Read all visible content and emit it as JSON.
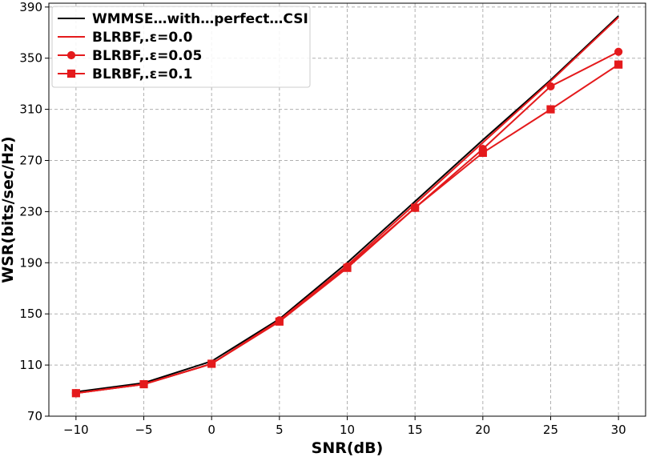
{
  "chart_data": {
    "type": "line",
    "title": "",
    "xlabel": "SNR(dB)",
    "ylabel": "WSR(bits/sec/Hz)",
    "x": [
      -10,
      -5,
      0,
      5,
      10,
      15,
      20,
      25,
      30
    ],
    "xticks": [
      -10,
      -5,
      0,
      5,
      10,
      15,
      20,
      25,
      30
    ],
    "xtick_labels": [
      "−10",
      "−5",
      "0",
      "5",
      "10",
      "15",
      "20",
      "25",
      "30"
    ],
    "yticks": [
      70,
      110,
      150,
      190,
      230,
      270,
      310,
      350,
      390
    ],
    "ytick_labels": [
      "70",
      "110",
      "150",
      "190",
      "230",
      "270",
      "310",
      "350",
      "390"
    ],
    "xlim": [
      -12,
      32
    ],
    "ylim": [
      70,
      393
    ],
    "grid": true,
    "legend_position": "top-left",
    "series": [
      {
        "name": "WMMSE…with…perfect…CSI",
        "color": "#000000",
        "marker": "none",
        "values": [
          89,
          96,
          113,
          146,
          190,
          238,
          286,
          333,
          383
        ]
      },
      {
        "name": "BLRBF,.ε=0.0",
        "color": "#e41a1c",
        "marker": "none",
        "values": [
          88,
          95,
          111,
          145,
          188,
          236,
          284,
          332,
          382
        ]
      },
      {
        "name": "BLRBF,.ε=0.05",
        "color": "#e41a1c",
        "marker": "circle",
        "values": [
          88,
          95,
          111,
          145,
          187,
          233,
          279,
          328,
          355
        ]
      },
      {
        "name": "BLRBF,.ε=0.1",
        "color": "#e41a1c",
        "marker": "square",
        "values": [
          88,
          95,
          111,
          144,
          186,
          233,
          276,
          310,
          345
        ]
      }
    ]
  }
}
